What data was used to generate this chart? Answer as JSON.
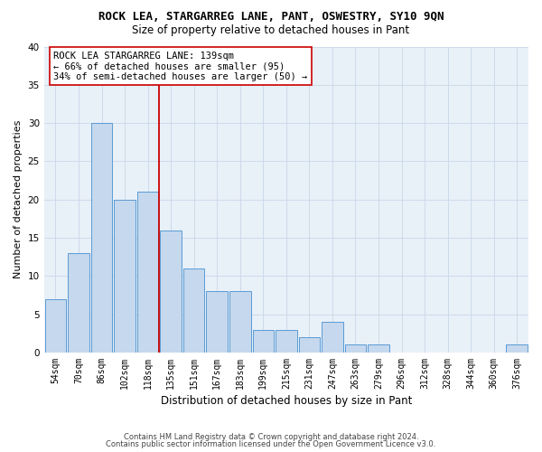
{
  "title": "ROCK LEA, STARGARREG LANE, PANT, OSWESTRY, SY10 9QN",
  "subtitle": "Size of property relative to detached houses in Pant",
  "xlabel": "Distribution of detached houses by size in Pant",
  "ylabel": "Number of detached properties",
  "footnote1": "Contains HM Land Registry data © Crown copyright and database right 2024.",
  "footnote2": "Contains public sector information licensed under the Open Government Licence v3.0.",
  "bins": [
    "54sqm",
    "70sqm",
    "86sqm",
    "102sqm",
    "118sqm",
    "135sqm",
    "151sqm",
    "167sqm",
    "183sqm",
    "199sqm",
    "215sqm",
    "231sqm",
    "247sqm",
    "263sqm",
    "279sqm",
    "296sqm",
    "312sqm",
    "328sqm",
    "344sqm",
    "360sqm",
    "376sqm"
  ],
  "values": [
    7,
    13,
    30,
    20,
    21,
    16,
    11,
    8,
    8,
    3,
    3,
    2,
    4,
    1,
    1,
    0,
    0,
    0,
    0,
    0,
    1
  ],
  "bar_color": "#c5d8ed",
  "bar_edge_color": "#5b9bd5",
  "grid_color": "#c8d8e8",
  "background_color": "#e8f0f8",
  "vline_color": "#cc0000",
  "annotation_text": "ROCK LEA STARGARREG LANE: 139sqm\n← 66% of detached houses are smaller (95)\n34% of semi-detached houses are larger (50) →",
  "annotation_box_color": "white",
  "annotation_box_edge_color": "#cc0000",
  "ylim": [
    0,
    40
  ],
  "yticks": [
    0,
    5,
    10,
    15,
    20,
    25,
    30,
    35,
    40
  ],
  "title_fontsize": 9,
  "subtitle_fontsize": 8.5,
  "xlabel_fontsize": 8.5,
  "ylabel_fontsize": 8,
  "tick_fontsize": 7,
  "annotation_fontsize": 7.5,
  "footnote_fontsize": 6
}
